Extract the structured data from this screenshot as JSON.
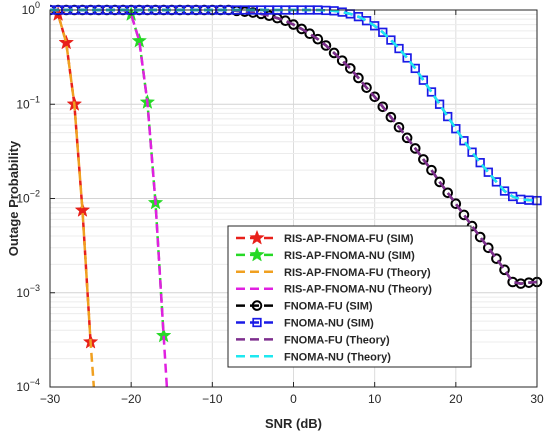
{
  "chart_data": {
    "type": "line",
    "xlabel": "SNR (dB)",
    "ylabel": "Outage Probability",
    "xlim": [
      -30,
      30
    ],
    "ylim": [
      0.0001,
      1
    ],
    "yscale": "log",
    "grid": true,
    "legend_position": "bottom-center",
    "x_ticks": [
      "−30",
      "−20",
      "−10",
      "0",
      "10",
      "20",
      "30"
    ],
    "y_ticks": [
      {
        "base": "10",
        "exp": "0"
      },
      {
        "base": "10",
        "exp": "−1"
      },
      {
        "base": "10",
        "exp": "−2"
      },
      {
        "base": "10",
        "exp": "−3"
      },
      {
        "base": "10",
        "exp": "−4"
      }
    ],
    "series": [
      {
        "name": "RIS-AP-FNOMA-FU (SIM)",
        "color": "#e8201a",
        "line": "dashed",
        "marker": "star",
        "x": [
          -29,
          -28,
          -27,
          -26,
          -25
        ],
        "y": [
          0.9,
          0.45,
          0.1,
          0.0075,
          0.0003
        ]
      },
      {
        "name": "RIS-AP-FNOMA-NU (SIM)",
        "color": "#26d926",
        "line": "dashed",
        "marker": "star",
        "x": [
          -20,
          -19,
          -18,
          -17,
          -16
        ],
        "y": [
          0.9,
          0.47,
          0.105,
          0.009,
          0.00035
        ]
      },
      {
        "name": "RIS-AP-FNOMA-FU (Theory)",
        "color": "#f0a020",
        "line": "dashed",
        "marker": "none",
        "x": [
          -30,
          -29,
          -28,
          -27,
          -26,
          -25,
          -24.6
        ],
        "y": [
          1,
          0.9,
          0.45,
          0.1,
          0.0075,
          0.0003,
          0.0001
        ]
      },
      {
        "name": "RIS-AP-FNOMA-NU (Theory)",
        "color": "#e020e0",
        "line": "dashed",
        "marker": "none",
        "x": [
          -30,
          -21,
          -20,
          -19,
          -18,
          -17,
          -16,
          -15.6
        ],
        "y": [
          1,
          1,
          0.9,
          0.47,
          0.105,
          0.009,
          0.00035,
          0.0001
        ]
      },
      {
        "name": "FNOMA-FU (SIM)",
        "color": "#000000",
        "line": "dashed",
        "marker": "circle",
        "x": [
          -30,
          -29,
          -28,
          -27,
          -26,
          -25,
          -24,
          -23,
          -22,
          -21,
          -20,
          -19,
          -18,
          -17,
          -16,
          -15,
          -14,
          -13,
          -12,
          -11,
          -10,
          -9,
          -8,
          -7,
          -6,
          -5,
          -4,
          -3,
          -2,
          -1,
          0,
          1,
          2,
          3,
          4,
          5,
          6,
          7,
          8,
          9,
          10,
          11,
          12,
          13,
          14,
          15,
          16,
          17,
          18,
          19,
          20,
          21,
          22,
          23,
          24,
          25,
          26,
          27,
          28,
          29,
          30
        ],
        "y": [
          1,
          1,
          1,
          1,
          1,
          1,
          1,
          1,
          1,
          1,
          1,
          1,
          1,
          1,
          1,
          1,
          1,
          1,
          1,
          1,
          1,
          1,
          1,
          0.98,
          0.96,
          0.94,
          0.91,
          0.87,
          0.82,
          0.77,
          0.7,
          0.63,
          0.56,
          0.49,
          0.42,
          0.35,
          0.29,
          0.24,
          0.19,
          0.15,
          0.12,
          0.094,
          0.073,
          0.057,
          0.044,
          0.034,
          0.026,
          0.02,
          0.015,
          0.0115,
          0.0088,
          0.0067,
          0.0051,
          0.0039,
          0.003,
          0.0023,
          0.00175,
          0.0013,
          0.00125,
          0.00128,
          0.0013
        ]
      },
      {
        "name": "FNOMA-NU (SIM)",
        "color": "#1a1ae6",
        "line": "dashed",
        "marker": "square",
        "x": [
          -30,
          -29,
          -28,
          -27,
          -26,
          -25,
          -24,
          -23,
          -22,
          -21,
          -20,
          -19,
          -18,
          -17,
          -16,
          -15,
          -14,
          -13,
          -12,
          -11,
          -10,
          -9,
          -8,
          -7,
          -6,
          -5,
          -4,
          -3,
          -2,
          -1,
          0,
          1,
          2,
          3,
          4,
          5,
          6,
          7,
          8,
          9,
          10,
          11,
          12,
          13,
          14,
          15,
          16,
          17,
          18,
          19,
          20,
          21,
          22,
          23,
          24,
          25,
          26,
          27,
          28,
          29,
          30
        ],
        "y": [
          1,
          1,
          1,
          1,
          1,
          1,
          1,
          1,
          1,
          1,
          1,
          1,
          1,
          1,
          1,
          1,
          1,
          1,
          1,
          1,
          1,
          1,
          1,
          1,
          1,
          1,
          1,
          1,
          1,
          1,
          1,
          1,
          1,
          1,
          0.99,
          0.98,
          0.95,
          0.91,
          0.85,
          0.77,
          0.68,
          0.58,
          0.48,
          0.39,
          0.31,
          0.24,
          0.18,
          0.135,
          0.1,
          0.074,
          0.055,
          0.041,
          0.031,
          0.024,
          0.019,
          0.015,
          0.012,
          0.0105,
          0.0098,
          0.0096,
          0.0095
        ]
      },
      {
        "name": "FNOMA-FU (Theory)",
        "color": "#7e2f8e",
        "line": "dashed",
        "marker": "none",
        "x": [
          -30,
          -29,
          -28,
          -27,
          -26,
          -25,
          -24,
          -23,
          -22,
          -21,
          -20,
          -19,
          -18,
          -17,
          -16,
          -15,
          -14,
          -13,
          -12,
          -11,
          -10,
          -9,
          -8,
          -7,
          -6,
          -5,
          -4,
          -3,
          -2,
          -1,
          0,
          1,
          2,
          3,
          4,
          5,
          6,
          7,
          8,
          9,
          10,
          11,
          12,
          13,
          14,
          15,
          16,
          17,
          18,
          19,
          20,
          21,
          22,
          23,
          24,
          25,
          26,
          27,
          28,
          29,
          30
        ],
        "y": [
          1,
          1,
          1,
          1,
          1,
          1,
          1,
          1,
          1,
          1,
          1,
          1,
          1,
          1,
          1,
          1,
          1,
          1,
          1,
          1,
          1,
          1,
          1,
          0.98,
          0.96,
          0.94,
          0.91,
          0.87,
          0.82,
          0.77,
          0.7,
          0.63,
          0.56,
          0.49,
          0.42,
          0.35,
          0.29,
          0.24,
          0.19,
          0.15,
          0.12,
          0.094,
          0.073,
          0.057,
          0.044,
          0.034,
          0.026,
          0.02,
          0.015,
          0.0115,
          0.0088,
          0.0067,
          0.0051,
          0.0039,
          0.003,
          0.0023,
          0.00175,
          0.0013,
          0.00125,
          0.00128,
          0.0013
        ]
      },
      {
        "name": "FNOMA-NU (Theory)",
        "color": "#1ee8f0",
        "line": "dashed",
        "marker": "none",
        "x": [
          -30,
          -29,
          -28,
          -27,
          -26,
          -25,
          -24,
          -23,
          -22,
          -21,
          -20,
          -19,
          -18,
          -17,
          -16,
          -15,
          -14,
          -13,
          -12,
          -11,
          -10,
          -9,
          -8,
          -7,
          -6,
          -5,
          -4,
          -3,
          -2,
          -1,
          0,
          1,
          2,
          3,
          4,
          5,
          6,
          7,
          8,
          9,
          10,
          11,
          12,
          13,
          14,
          15,
          16,
          17,
          18,
          19,
          20,
          21,
          22,
          23,
          24,
          25,
          26,
          27,
          28,
          29,
          30
        ],
        "y": [
          1,
          1,
          1,
          1,
          1,
          1,
          1,
          1,
          1,
          1,
          1,
          1,
          1,
          1,
          1,
          1,
          1,
          1,
          1,
          1,
          1,
          1,
          1,
          1,
          1,
          1,
          1,
          1,
          1,
          1,
          1,
          1,
          1,
          1,
          0.99,
          0.98,
          0.95,
          0.91,
          0.85,
          0.77,
          0.68,
          0.58,
          0.48,
          0.39,
          0.31,
          0.24,
          0.18,
          0.135,
          0.1,
          0.074,
          0.055,
          0.041,
          0.031,
          0.024,
          0.019,
          0.015,
          0.012,
          0.0105,
          0.0098,
          0.0096,
          0.0095
        ]
      }
    ]
  }
}
